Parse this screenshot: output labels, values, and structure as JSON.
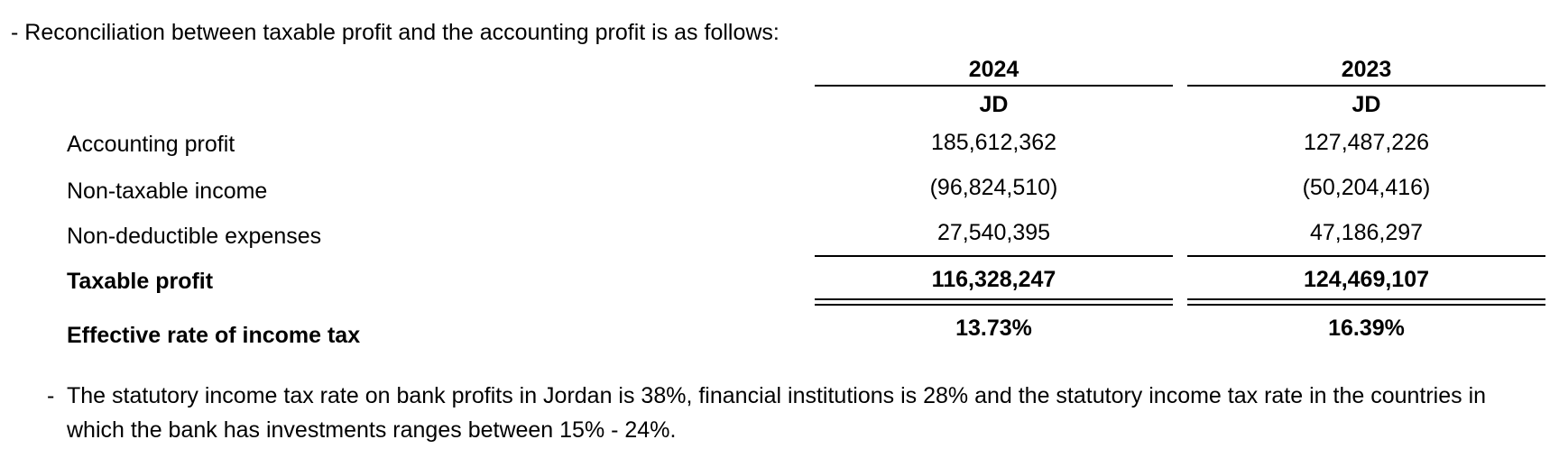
{
  "intro": "- Reconciliation between taxable profit and the accounting profit is as follows:",
  "columns": [
    {
      "year": "2024",
      "unit": "JD"
    },
    {
      "year": "2023",
      "unit": "JD"
    }
  ],
  "rows": [
    {
      "label": "Accounting profit",
      "values": [
        "185,612,362",
        "127,487,226"
      ]
    },
    {
      "label": "Non-taxable income",
      "values": [
        "(96,824,510)",
        "(50,204,416)"
      ]
    },
    {
      "label": "Non-deductible expenses",
      "values": [
        "27,540,395",
        "47,186,297"
      ]
    },
    {
      "label": "Taxable profit",
      "values": [
        "116,328,247",
        "124,469,107"
      ]
    },
    {
      "label": "Effective rate of income tax",
      "values": [
        "13.73%",
        "16.39%"
      ]
    }
  ],
  "note": {
    "bullet": "-",
    "text": "The statutory income tax rate on bank profits in Jordan is 38%, financial institutions is 28% and the statutory income tax rate in the countries in which the bank has investments ranges between 15% - 24%."
  }
}
